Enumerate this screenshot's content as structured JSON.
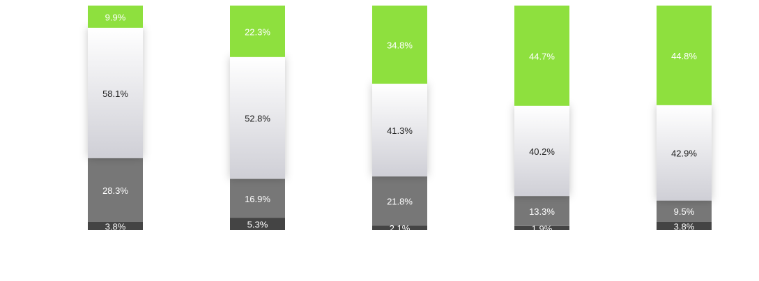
{
  "chart_data": {
    "type": "bar",
    "stacked": true,
    "normalized_percent": true,
    "ylim": [
      0,
      100
    ],
    "grid": false,
    "legend": "none",
    "series": [
      {
        "key": "s1",
        "values": [
          3.8,
          5.3,
          2.1,
          1.9,
          3.8
        ],
        "color": "#444444",
        "label_color": "#ffffff",
        "gradient": false
      },
      {
        "key": "s2",
        "values": [
          28.3,
          16.9,
          21.8,
          13.3,
          9.5
        ],
        "color": "#777777",
        "label_color": "#ffffff",
        "gradient": false
      },
      {
        "key": "s3",
        "values": [
          58.1,
          52.8,
          41.3,
          40.2,
          42.9
        ],
        "color": "#ffffff",
        "color_bottom": "#cfcfd6",
        "label_color": "#222222",
        "gradient": true
      },
      {
        "key": "s4",
        "values": [
          9.9,
          22.3,
          34.8,
          44.7,
          44.8
        ],
        "color": "#8ee03e",
        "label_color": "#ffffff",
        "gradient": false
      }
    ],
    "labels": [
      [
        "3.8%",
        "28.3%",
        "58.1%",
        "9.9%"
      ],
      [
        "5.3%",
        "16.9%",
        "52.8%",
        "22.3%"
      ],
      [
        "2.1%",
        "21.8%",
        "41.3%",
        "34.8%"
      ],
      [
        "1.9%",
        "13.3%",
        "40.2%",
        "44.7%"
      ],
      [
        "3.8%",
        "9.5%",
        "42.9%",
        "44.8%"
      ]
    ]
  }
}
